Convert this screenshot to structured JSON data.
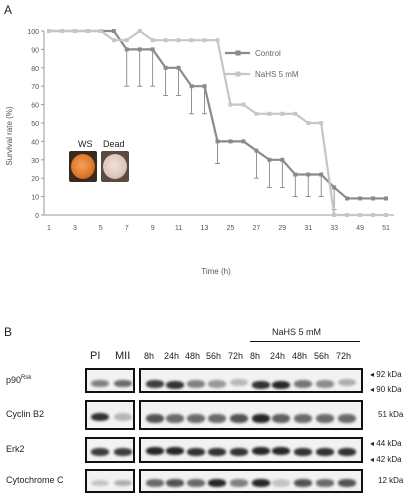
{
  "panelA": {
    "label": "A",
    "chart_data": {
      "type": "line",
      "xlabel": "Time (h)",
      "ylabel": "Survival rate (%)",
      "ylim": [
        0,
        100
      ],
      "yticks": [
        "0",
        "10",
        "20",
        "30",
        "40",
        "50",
        "60",
        "70",
        "80",
        "90",
        "100"
      ],
      "categories": [
        "1",
        "2",
        "3",
        "4",
        "5",
        "6",
        "7",
        "8",
        "9",
        "10",
        "11",
        "12",
        "13",
        "14",
        "25",
        "26",
        "27",
        "28",
        "29",
        "30",
        "31",
        "32",
        "33",
        "34",
        "49",
        "50",
        "51"
      ],
      "xtick_labels": [
        "1",
        "3",
        "5",
        "7",
        "9",
        "11",
        "13",
        "25",
        "27",
        "29",
        "31",
        "33",
        "49",
        "51"
      ],
      "grid": false,
      "legend_position": "top-right",
      "series": [
        {
          "name": "Control",
          "color": "#8a8a8a",
          "values": [
            100,
            100,
            100,
            100,
            100,
            100,
            90,
            90,
            90,
            80,
            80,
            70,
            70,
            40,
            40,
            40,
            35,
            30,
            30,
            22,
            22,
            22,
            15,
            9,
            9,
            9,
            9
          ]
        },
        {
          "name": "NaHS 5 mM",
          "color": "#c6c6c6",
          "values": [
            100,
            100,
            100,
            100,
            100,
            95,
            95,
            100,
            95,
            95,
            95,
            95,
            95,
            95,
            60,
            60,
            55,
            55,
            55,
            55,
            50,
            50,
            0,
            0,
            0,
            0,
            0
          ]
        }
      ]
    },
    "inset": {
      "ws_label": "WS",
      "dead_label": "Dead"
    }
  },
  "panelB": {
    "label": "B",
    "treatment_label": "NaHS 5 mM",
    "columns": {
      "pi": "PI",
      "mii": "MII",
      "times": [
        "8h",
        "24h",
        "48h",
        "56h",
        "72h",
        "8h",
        "24h",
        "48h",
        "56h",
        "72h"
      ]
    },
    "rows": [
      {
        "name": "p90",
        "sup": "Rsk",
        "kda": [
          "92 kDa",
          "90 kDa"
        ]
      },
      {
        "name": "Cyclin B2",
        "kda": [
          "51 kDa"
        ]
      },
      {
        "name": "Erk2",
        "kda": [
          "44 kDa",
          "42 kDa"
        ]
      },
      {
        "name": "Cytochrome C",
        "kda": [
          "12 kDa"
        ]
      }
    ]
  }
}
